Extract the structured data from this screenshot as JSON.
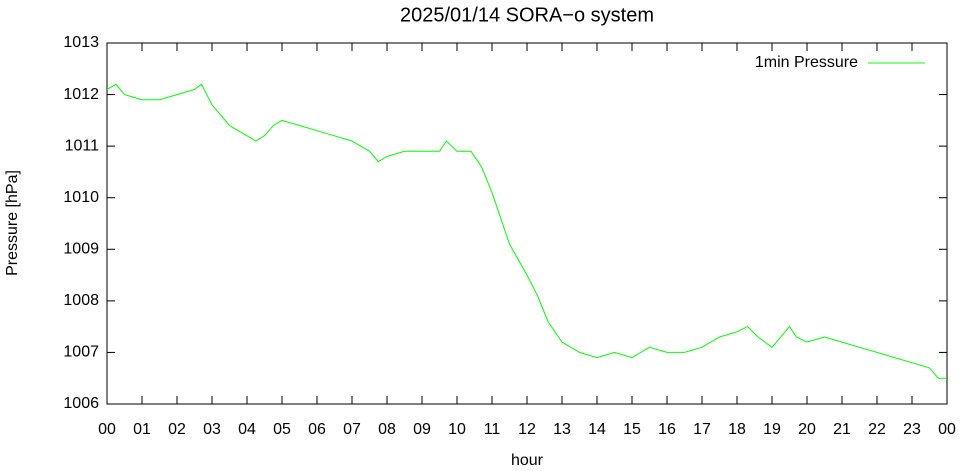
{
  "chart_data": {
    "type": "line",
    "title": "2025/01/14 SORA−o system",
    "x_label": "hour",
    "y_label": "Pressure [hPa]",
    "xlim": [
      0,
      24
    ],
    "xticks": [
      {
        "value": 0,
        "label": "00"
      },
      {
        "value": 1,
        "label": "01"
      },
      {
        "value": 2,
        "label": "02"
      },
      {
        "value": 3,
        "label": "03"
      },
      {
        "value": 4,
        "label": "04"
      },
      {
        "value": 5,
        "label": "05"
      },
      {
        "value": 6,
        "label": "06"
      },
      {
        "value": 7,
        "label": "07"
      },
      {
        "value": 8,
        "label": "08"
      },
      {
        "value": 9,
        "label": "09"
      },
      {
        "value": 10,
        "label": "10"
      },
      {
        "value": 11,
        "label": "11"
      },
      {
        "value": 12,
        "label": "12"
      },
      {
        "value": 13,
        "label": "13"
      },
      {
        "value": 14,
        "label": "14"
      },
      {
        "value": 15,
        "label": "15"
      },
      {
        "value": 16,
        "label": "16"
      },
      {
        "value": 17,
        "label": "17"
      },
      {
        "value": 18,
        "label": "18"
      },
      {
        "value": 19,
        "label": "19"
      },
      {
        "value": 20,
        "label": "20"
      },
      {
        "value": 21,
        "label": "21"
      },
      {
        "value": 22,
        "label": "22"
      },
      {
        "value": 23,
        "label": "23"
      },
      {
        "value": 24,
        "label": "00"
      }
    ],
    "ylim": [
      1006,
      1013
    ],
    "yticks": [
      1006,
      1007,
      1008,
      1009,
      1010,
      1011,
      1012,
      1013
    ],
    "legend": "upper right",
    "x": [
      0,
      0.25,
      0.5,
      1,
      1.5,
      2,
      2.5,
      2.7,
      3,
      3.25,
      3.5,
      4,
      4.25,
      4.5,
      4.75,
      5,
      5.5,
      6,
      6.5,
      7,
      7.5,
      7.75,
      8,
      8.5,
      9,
      9.5,
      9.7,
      10,
      10.4,
      10.7,
      11,
      11.5,
      12,
      12.3,
      12.6,
      13,
      13.5,
      14,
      14.5,
      15,
      15.5,
      16,
      16.5,
      17,
      17.5,
      18,
      18.3,
      18.6,
      19,
      19.5,
      19.7,
      20,
      20.5,
      21,
      21.5,
      22,
      22.5,
      23,
      23.5,
      23.75,
      24
    ],
    "series": [
      {
        "name": "1min Pressure",
        "color": "#00ff00",
        "values": [
          1012.1,
          1012.2,
          1012.0,
          1011.9,
          1011.9,
          1012.0,
          1012.1,
          1012.2,
          1011.8,
          1011.6,
          1011.4,
          1011.2,
          1011.1,
          1011.2,
          1011.4,
          1011.5,
          1011.4,
          1011.3,
          1011.2,
          1011.1,
          1010.9,
          1010.7,
          1010.8,
          1010.9,
          1010.9,
          1010.9,
          1011.1,
          1010.9,
          1010.9,
          1010.6,
          1010.1,
          1009.1,
          1008.5,
          1008.1,
          1007.6,
          1007.2,
          1007.0,
          1006.9,
          1007.0,
          1006.9,
          1007.1,
          1007.0,
          1007.0,
          1007.1,
          1007.3,
          1007.4,
          1007.5,
          1007.3,
          1007.1,
          1007.5,
          1007.3,
          1007.2,
          1007.3,
          1007.2,
          1007.1,
          1007.0,
          1006.9,
          1006.8,
          1006.7,
          1006.5,
          1006.5
        ]
      }
    ]
  }
}
